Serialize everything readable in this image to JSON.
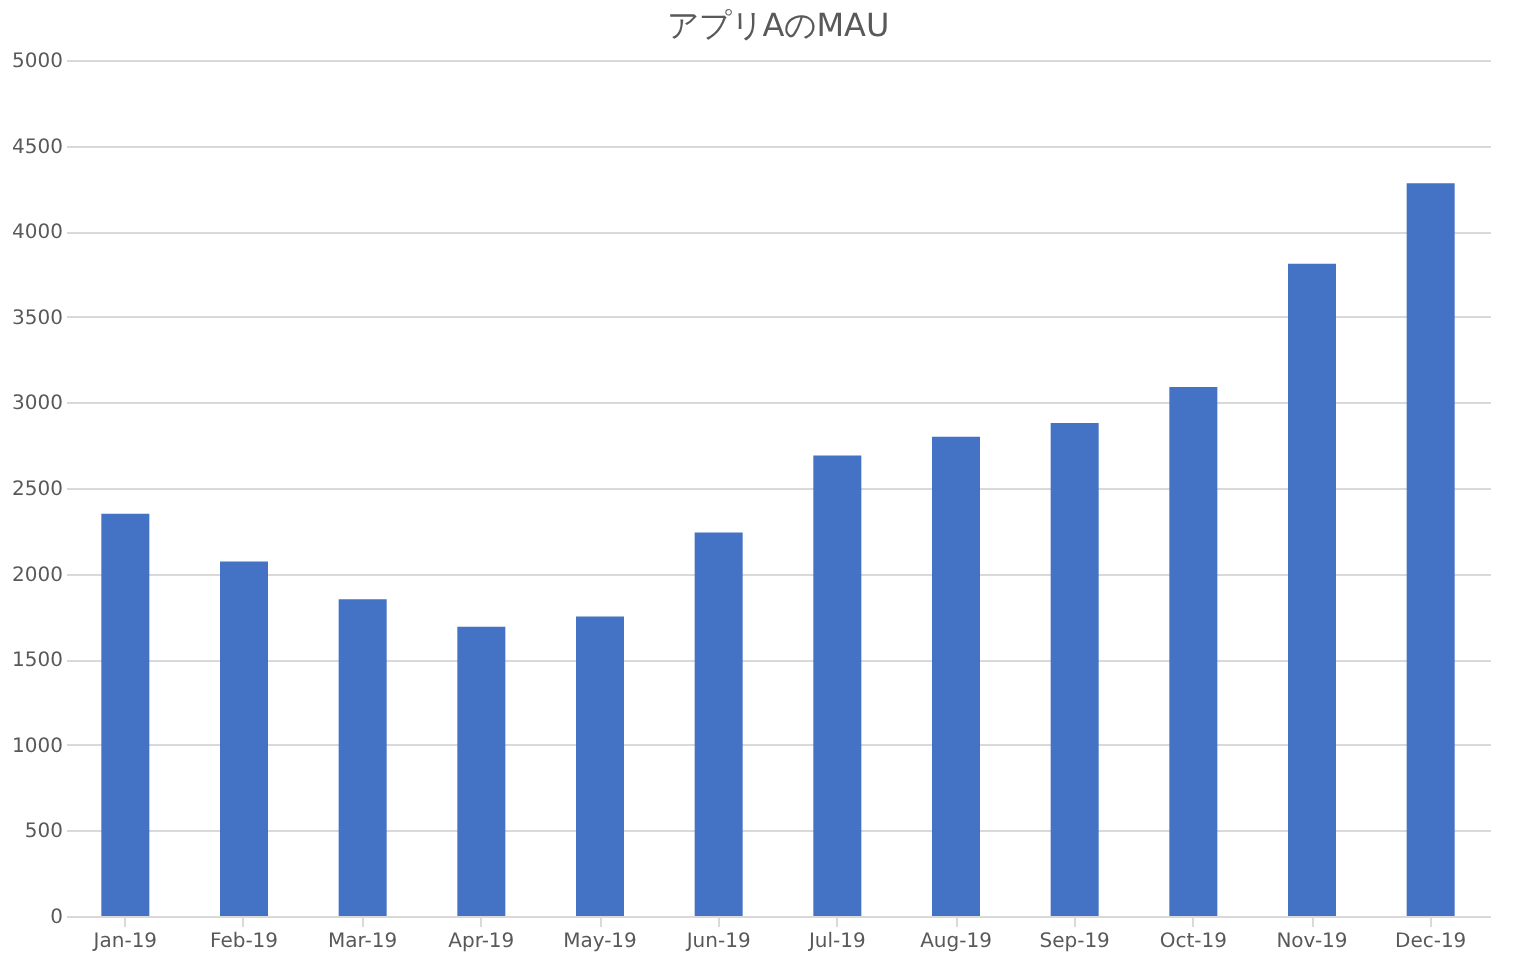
{
  "chart_data": {
    "type": "bar",
    "title": "アプリAのMAU",
    "categories": [
      "Jan-19",
      "Feb-19",
      "Mar-19",
      "Apr-19",
      "May-19",
      "Jun-19",
      "Jul-19",
      "Aug-19",
      "Sep-19",
      "Oct-19",
      "Nov-19",
      "Dec-19"
    ],
    "values": [
      2350,
      2070,
      1850,
      1690,
      1750,
      2240,
      2690,
      2800,
      2880,
      3090,
      3810,
      4280
    ],
    "color": "#4472c4",
    "ylim": [
      0,
      5000
    ],
    "yticks": [
      0,
      500,
      1000,
      1500,
      2000,
      2500,
      3000,
      3500,
      4000,
      4500,
      5000
    ],
    "grid": "y"
  }
}
